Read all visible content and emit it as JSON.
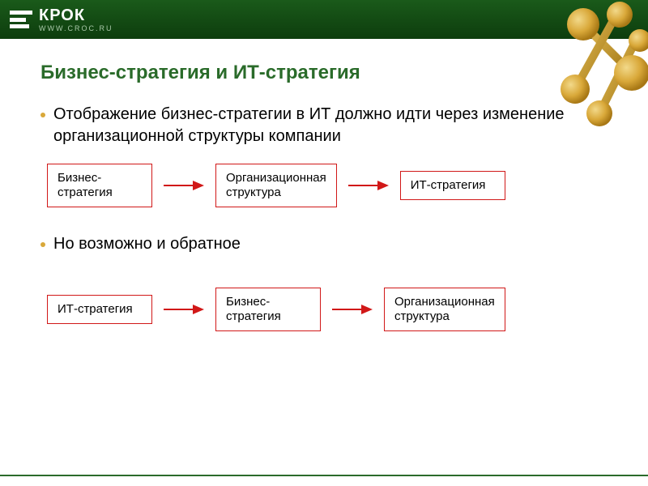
{
  "header": {
    "logo_text": "КРОК",
    "logo_url": "WWW.CROC.RU",
    "bg_gradient_top": "#1a5a1a",
    "bg_gradient_bottom": "#0d3d0d",
    "decor_colors": {
      "ball": "#d9a839",
      "rod": "#b88820",
      "highlight": "#f2d98a"
    }
  },
  "title": {
    "text": "Бизнес-стратегия и ИТ-стратегия",
    "color": "#2a6b2a",
    "fontsize": 24
  },
  "bullets": [
    {
      "text": "Отображение бизнес-стратегии в ИТ должно идти через изменение организационной структуры компании",
      "dot_color": "#d9a839"
    },
    {
      "text": "Но возможно и обратное",
      "dot_color": "#d9a839"
    }
  ],
  "flows": [
    {
      "boxes": [
        {
          "label": "Бизнес-\nстратегия"
        },
        {
          "label": "Организационная\nструктура"
        },
        {
          "label": "ИТ-стратегия"
        }
      ]
    },
    {
      "boxes": [
        {
          "label": "ИТ-стратегия"
        },
        {
          "label": "Бизнес-\nстратегия"
        },
        {
          "label": "Организационная\nструктура"
        }
      ]
    }
  ],
  "flow_style": {
    "box_border_color": "#d11818",
    "box_text_color": "#000000",
    "box_fontsize": 15,
    "arrow_color": "#d11818",
    "arrow_line_width": 2
  },
  "footer_line_color": "#2a6b2a"
}
